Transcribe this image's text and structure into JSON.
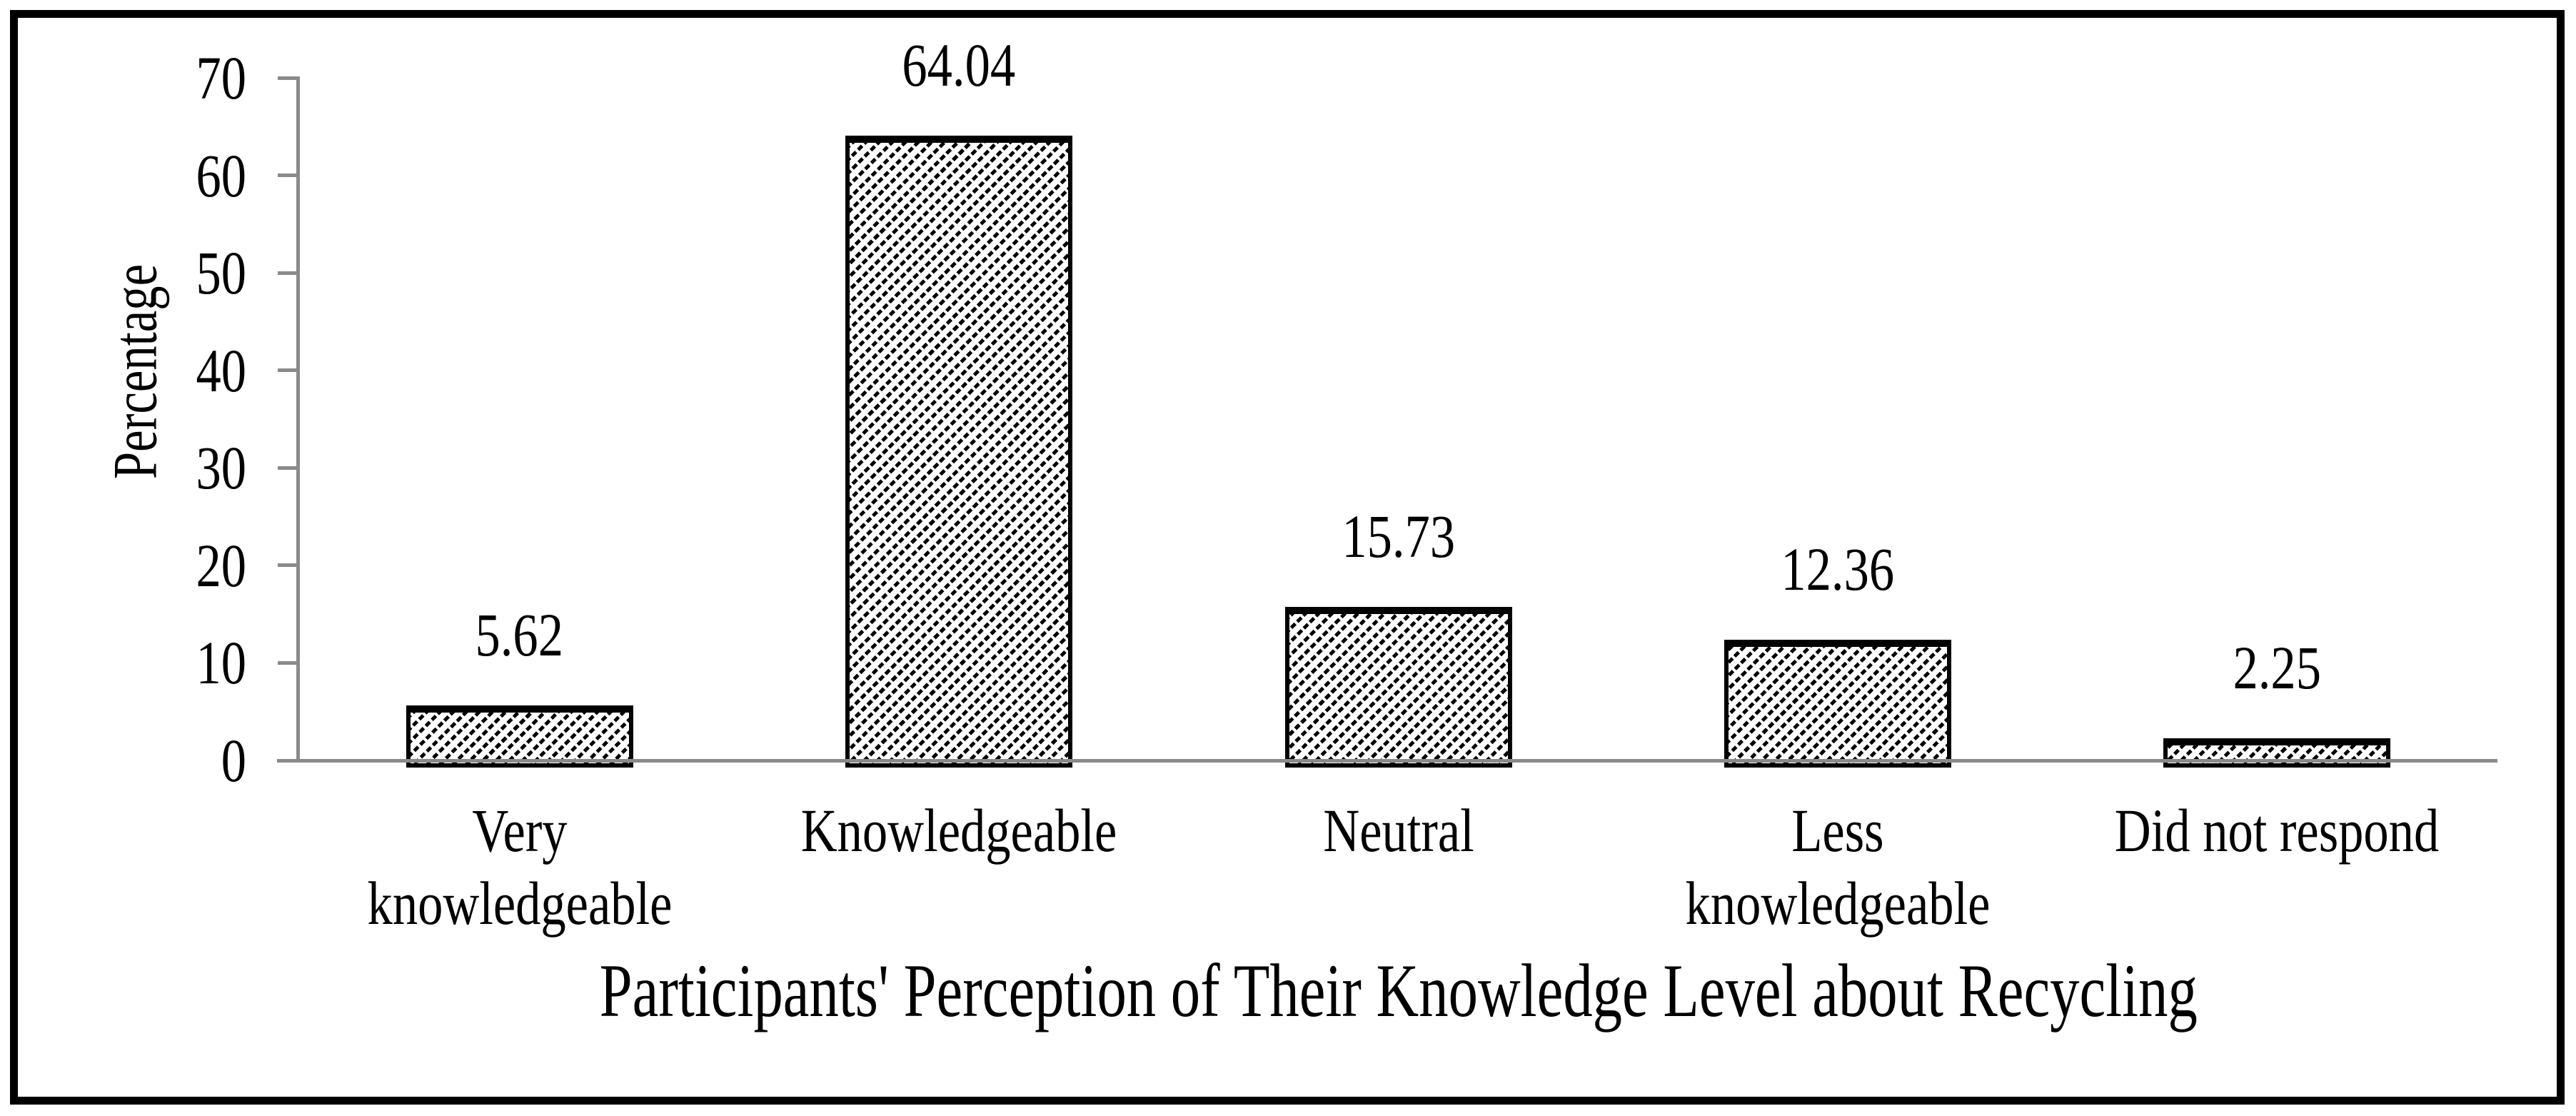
{
  "chart_data": {
    "type": "bar",
    "title": "",
    "xlabel": "Participants' Perception of Their Knowledge Level about Recycling",
    "ylabel": "Percentage",
    "categories": [
      "Very knowledgeable",
      "Knowledgeable",
      "Neutral",
      "Less knowledgeable",
      "Did not respond"
    ],
    "values": [
      5.62,
      64.04,
      15.73,
      12.36,
      2.25
    ],
    "data_labels": [
      "5.62",
      "64.04",
      "15.73",
      "12.36",
      "2.25"
    ],
    "ylim": [
      0,
      70
    ],
    "yticks": [
      0,
      10,
      20,
      30,
      40,
      50,
      60,
      70
    ],
    "grid": false,
    "legend": false,
    "bar_style": {
      "fill": "#ffffff",
      "hatch": "diagonal-forward-slash",
      "outline": "#000000"
    },
    "colors": {
      "axis": "#8a8a8a",
      "text": "#000000",
      "background": "#ffffff",
      "frame": "#000000"
    }
  }
}
